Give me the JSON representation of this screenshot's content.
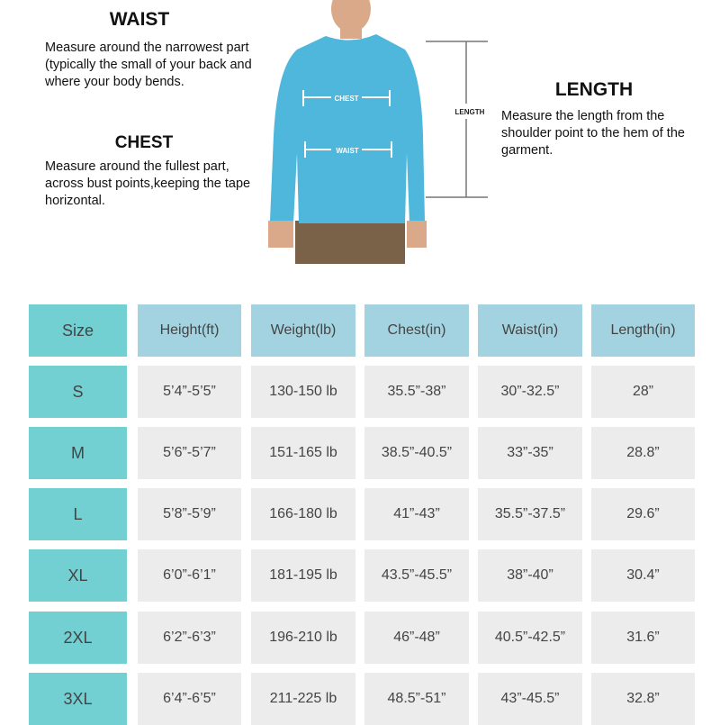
{
  "waist": {
    "title": "WAIST",
    "desc": "Measure around the narrowest part (typically the small of your back and where your body bends."
  },
  "chest": {
    "title": "CHEST",
    "desc": "Measure around the fullest part, across bust points,keeping the tape horizontal."
  },
  "length": {
    "title": "LENGTH",
    "desc": "Measure the length from the shoulder point to the hem of the garment."
  },
  "figure": {
    "chest_label": "CHEST",
    "waist_label": "WAIST",
    "length_label": "LENGTH",
    "shirt_color": "#4fb6dc",
    "pants_color": "#7a6248"
  },
  "colors": {
    "size_column": "#72cfd2",
    "header": "#a3d3e0",
    "cell": "#ececec"
  },
  "table": {
    "headers": [
      "Size",
      "Height(ft)",
      "Weight(lb)",
      "Chest(in)",
      "Waist(in)",
      "Length(in)"
    ],
    "rows": [
      [
        "S",
        "5’4”-5’5”",
        "130-150 lb",
        "35.5”-38”",
        "30”-32.5”",
        "28”"
      ],
      [
        "M",
        "5’6”-5’7”",
        "151-165 lb",
        "38.5”-40.5”",
        "33”-35”",
        "28.8”"
      ],
      [
        "L",
        "5’8”-5’9”",
        "166-180 lb",
        "41”-43”",
        "35.5”-37.5”",
        "29.6”"
      ],
      [
        "XL",
        "6’0”-6’1”",
        "181-195 lb",
        "43.5”-45.5”",
        "38”-40”",
        "30.4”"
      ],
      [
        "2XL",
        "6’2”-6’3”",
        "196-210 lb",
        "46”-48”",
        "40.5”-42.5”",
        "31.6”"
      ],
      [
        "3XL",
        "6’4”-6’5”",
        "211-225 lb",
        "48.5”-51”",
        "43”-45.5”",
        "32.8”"
      ]
    ]
  }
}
